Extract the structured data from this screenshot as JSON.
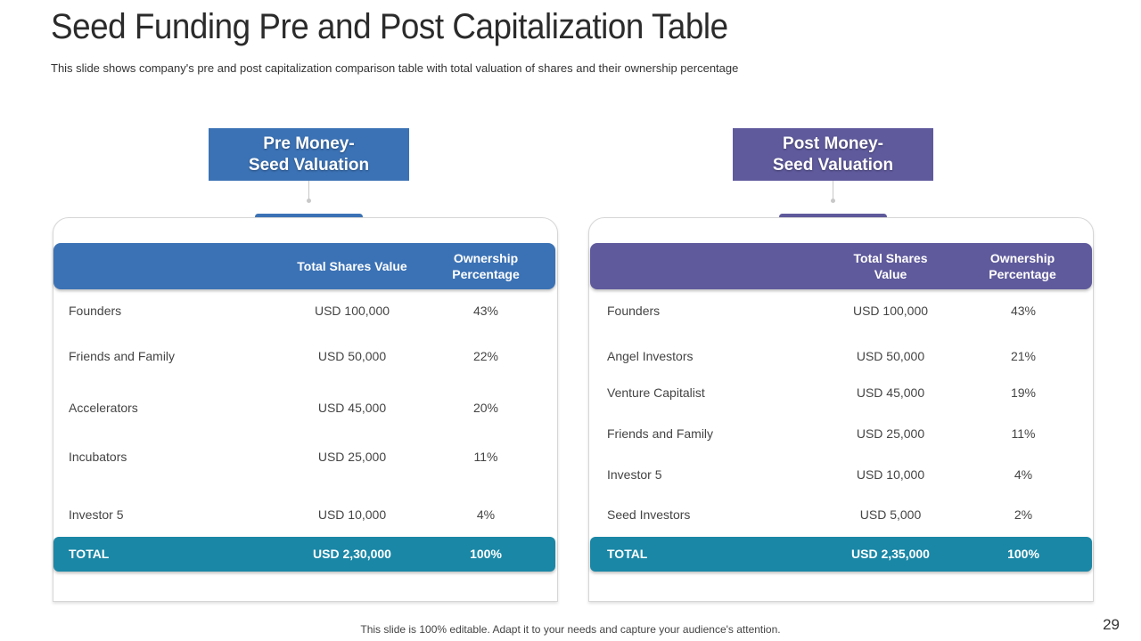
{
  "slide": {
    "title": "Seed Funding Pre and Post Capitalization Table",
    "subtitle": "This slide shows company's pre and post capitalization comparison table with total valuation of shares and their ownership percentage",
    "footer": "This slide is 100% editable. Adapt it to your needs and capture your audience's attention.",
    "page_number": "29"
  },
  "colors": {
    "pre": "#3b72b5",
    "post": "#5f5a9c",
    "total": "#1a87a6"
  },
  "pre": {
    "label_line1": "Pre Money-",
    "label_line2": "Seed Valuation",
    "col_value": "Total Shares Value",
    "col_pct_line1": "Ownership",
    "col_pct_line2": "Percentage",
    "rows": [
      {
        "name": "Founders",
        "value": "USD 100,000",
        "pct": "43%"
      },
      {
        "name": "Friends and Family",
        "value": "USD 50,000",
        "pct": "22%"
      },
      {
        "name": "Accelerators",
        "value": "USD 45,000",
        "pct": "20%"
      },
      {
        "name": "Incubators",
        "value": "USD 25,000",
        "pct": "11%"
      },
      {
        "name": "Investor 5",
        "value": "USD 10,000",
        "pct": "4%"
      }
    ],
    "total": {
      "name": "TOTAL",
      "value": "USD 2,30,000",
      "pct": "100%"
    }
  },
  "post": {
    "label_line1": "Post Money-",
    "label_line2": "Seed Valuation",
    "col_value_line1": "Total Shares",
    "col_value_line2": "Value",
    "col_pct_line1": "Ownership",
    "col_pct_line2": "Percentage",
    "rows": [
      {
        "name": "Founders",
        "value": "USD 100,000",
        "pct": "43%"
      },
      {
        "name": "Angel Investors",
        "value": "USD 50,000",
        "pct": "21%"
      },
      {
        "name": "Venture Capitalist",
        "value": "USD 45,000",
        "pct": "19%"
      },
      {
        "name": "Friends and Family",
        "value": "USD 25,000",
        "pct": "11%"
      },
      {
        "name": "Investor 5",
        "value": "USD 10,000",
        "pct": "4%"
      },
      {
        "name": "Seed Investors",
        "value": "USD 5,000",
        "pct": "2%"
      }
    ],
    "total": {
      "name": "TOTAL",
      "value": "USD 2,35,000",
      "pct": "100%"
    }
  }
}
